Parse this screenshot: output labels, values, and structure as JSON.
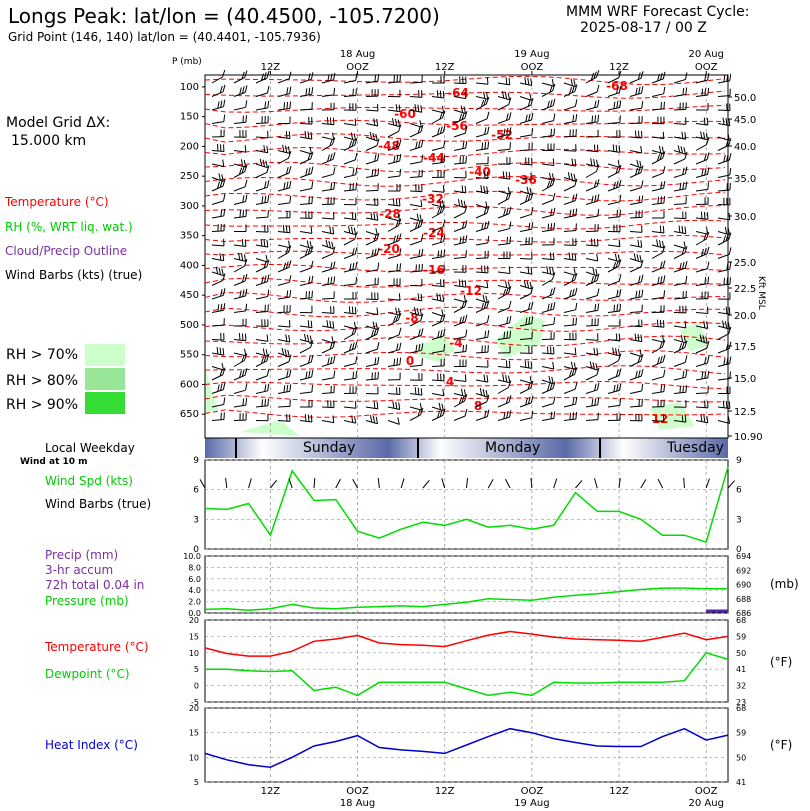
{
  "header": {
    "title": "Longs Peak:  lat/lon = (40.4500, -105.7200)",
    "gridpoint": "Grid Point (146, 140) lat/lon = (40.4401, -105.7936)",
    "model_cycle_label": "MMM WRF Forecast Cycle:",
    "model_cycle_value": "2025-08-17 / 00  Z"
  },
  "left_panel": {
    "grid_dx_label": "Model Grid ΔX:",
    "grid_dx_value": "15.000 km",
    "legend_temperature": "Temperature (°C)",
    "legend_rh": "RH (%, WRT liq. wat.)",
    "legend_cloud": "Cloud/Precip Outline",
    "legend_wind": "Wind Barbs (kts) (true)",
    "rh_levels": [
      "RH > 70%",
      "RH > 80%",
      "RH > 90%"
    ],
    "rh_colors": [
      "#ccffcc",
      "#99e699",
      "#33dd33"
    ],
    "local_weekday": "Local Weekday",
    "wind_at": "Wind at 10 m",
    "wind_spd": "Wind Spd (kts)",
    "wind_barbs": "Wind Barbs (true)",
    "precip": "Precip (mm)",
    "accum": "3-hr accum",
    "total": "72h total 0.04 in",
    "pressure": "Pressure (mb)",
    "temperature": "Temperature (°C)",
    "dewpoint": "Dewpoint (°C)",
    "heat_index": "Heat Index (°C)"
  },
  "right_labels": {
    "kft_msl": "Kft MSL",
    "mb": "(mb)",
    "degF1": "(°F)",
    "degF2": "(°F)"
  },
  "top_axis": {
    "pmb": "P (mb)",
    "ticks": [
      "12Z",
      "OOZ",
      "12Z",
      "OOZ",
      "12Z",
      "OOZ"
    ],
    "dates": [
      "18 Aug",
      "19 Aug",
      "20 Aug"
    ]
  },
  "bottom_axis": {
    "ticks": [
      "12Z",
      "OOZ",
      "12Z",
      "OOZ",
      "12Z",
      "OOZ"
    ],
    "dates": [
      "18 Aug",
      "19 Aug",
      "20 Aug"
    ]
  },
  "weekday_bar": [
    "Sunday",
    "Monday",
    "Tuesday"
  ],
  "chart_data": [
    {
      "type": "cross-section",
      "pressure_levels": [
        100,
        150,
        200,
        250,
        300,
        350,
        400,
        450,
        500,
        550,
        600,
        650
      ],
      "kft_labels": [
        "50.0",
        "45.0",
        "40.0",
        "35.0",
        "30.0",
        "25.0",
        "22.5",
        "20.0",
        "17.5",
        "15.0",
        "12.5",
        "10.90"
      ],
      "temperature_labels": [
        "-64",
        "-68",
        "-60",
        "-56",
        "-52",
        "-48",
        "-44",
        "-40",
        "-36",
        "-32",
        "-28",
        "-24",
        "-20",
        "-16",
        "-12",
        "-8",
        "-4",
        "0",
        "4",
        "8",
        "12"
      ]
    },
    {
      "type": "line",
      "title": "Wind Spd (kts)",
      "ylim": [
        0,
        9
      ],
      "yticks": [
        0,
        3,
        6,
        9
      ],
      "hours": [
        0,
        3,
        6,
        9,
        12,
        15,
        18,
        21,
        24,
        27,
        30,
        33,
        36,
        39,
        42,
        45,
        48,
        51,
        54,
        57,
        60,
        63,
        66,
        69,
        72
      ],
      "values": [
        4.1,
        4.0,
        4.6,
        1.4,
        7.9,
        4.9,
        5.0,
        1.8,
        1.1,
        2.0,
        2.7,
        2.4,
        3.0,
        2.2,
        2.4,
        2.0,
        2.4,
        5.7,
        3.8,
        3.8,
        3.0,
        1.4,
        1.4,
        0.7,
        8.3
      ]
    },
    {
      "type": "line",
      "title": "Pressure (mb)",
      "ylim_left": [
        0.0,
        10.0
      ],
      "yticks_left": [
        "0.0",
        "2.0",
        "4.0",
        "6.0",
        "8.0",
        "10.0"
      ],
      "ylim_right": [
        686,
        694
      ],
      "yticks_right": [
        686,
        688,
        690,
        692,
        694
      ],
      "hours": [
        0,
        3,
        6,
        9,
        12,
        15,
        18,
        21,
        24,
        27,
        30,
        33,
        36,
        39,
        42,
        45,
        48,
        51,
        54,
        57,
        60,
        63,
        66,
        69,
        72
      ],
      "values": [
        686.5,
        686.6,
        686.4,
        686.6,
        687.2,
        686.7,
        686.6,
        686.8,
        686.9,
        687.0,
        686.9,
        687.2,
        687.5,
        688.0,
        687.9,
        687.8,
        688.2,
        688.5,
        688.7,
        689.0,
        689.3,
        689.5,
        689.5,
        689.4,
        689.4
      ],
      "precip_mm": [
        0,
        0,
        0,
        0,
        0,
        0,
        0,
        0,
        0,
        0,
        0,
        0,
        0,
        0,
        0,
        0,
        0,
        0,
        0,
        0,
        0,
        0,
        0,
        0.3,
        0.3
      ]
    },
    {
      "type": "line",
      "title": "Temperature / Dewpoint (°C)",
      "ylim": [
        -5,
        20
      ],
      "yticks_left": [
        -5,
        0,
        5,
        10,
        15,
        20
      ],
      "yticks_right": [
        23,
        32,
        41,
        50,
        59,
        68
      ],
      "hours": [
        0,
        3,
        6,
        9,
        12,
        15,
        18,
        21,
        24,
        27,
        30,
        33,
        36,
        39,
        42,
        45,
        48,
        51,
        54,
        57,
        60,
        63,
        66,
        69,
        72
      ],
      "series": [
        {
          "name": "Temperature",
          "color": "#ff0000",
          "values": [
            11.5,
            9.8,
            9.0,
            9.0,
            10.5,
            13.5,
            14.2,
            15.3,
            13.0,
            12.5,
            12.3,
            11.9,
            13.7,
            15.4,
            16.5,
            15.7,
            14.8,
            14.2,
            14.0,
            13.8,
            13.5,
            14.7,
            16.0,
            14.0,
            15.0
          ]
        },
        {
          "name": "Dewpoint",
          "color": "#00dd00",
          "values": [
            5.0,
            5.0,
            4.5,
            4.3,
            4.5,
            -1.5,
            -0.5,
            -3.0,
            1.0,
            1.0,
            1.0,
            1.0,
            -1.0,
            -3.0,
            -2.0,
            -3.0,
            1.0,
            0.8,
            0.8,
            1.0,
            1.0,
            1.0,
            1.5,
            10.0,
            8.0
          ]
        }
      ]
    },
    {
      "type": "line",
      "title": "Heat Index (°C)",
      "ylim": [
        5,
        20
      ],
      "yticks_left": [
        5,
        10,
        15,
        20
      ],
      "yticks_right": [
        41,
        50,
        59,
        68
      ],
      "hours": [
        0,
        3,
        6,
        9,
        12,
        15,
        18,
        21,
        24,
        27,
        30,
        33,
        36,
        39,
        42,
        45,
        48,
        51,
        54,
        57,
        60,
        63,
        66,
        69,
        72
      ],
      "values": [
        10.8,
        9.5,
        8.5,
        8.0,
        10.0,
        12.3,
        13.2,
        14.4,
        12.0,
        11.5,
        11.2,
        10.8,
        12.5,
        14.2,
        15.8,
        15.0,
        13.8,
        13.0,
        12.3,
        12.2,
        12.2,
        14.2,
        15.8,
        13.5,
        14.5
      ]
    }
  ]
}
